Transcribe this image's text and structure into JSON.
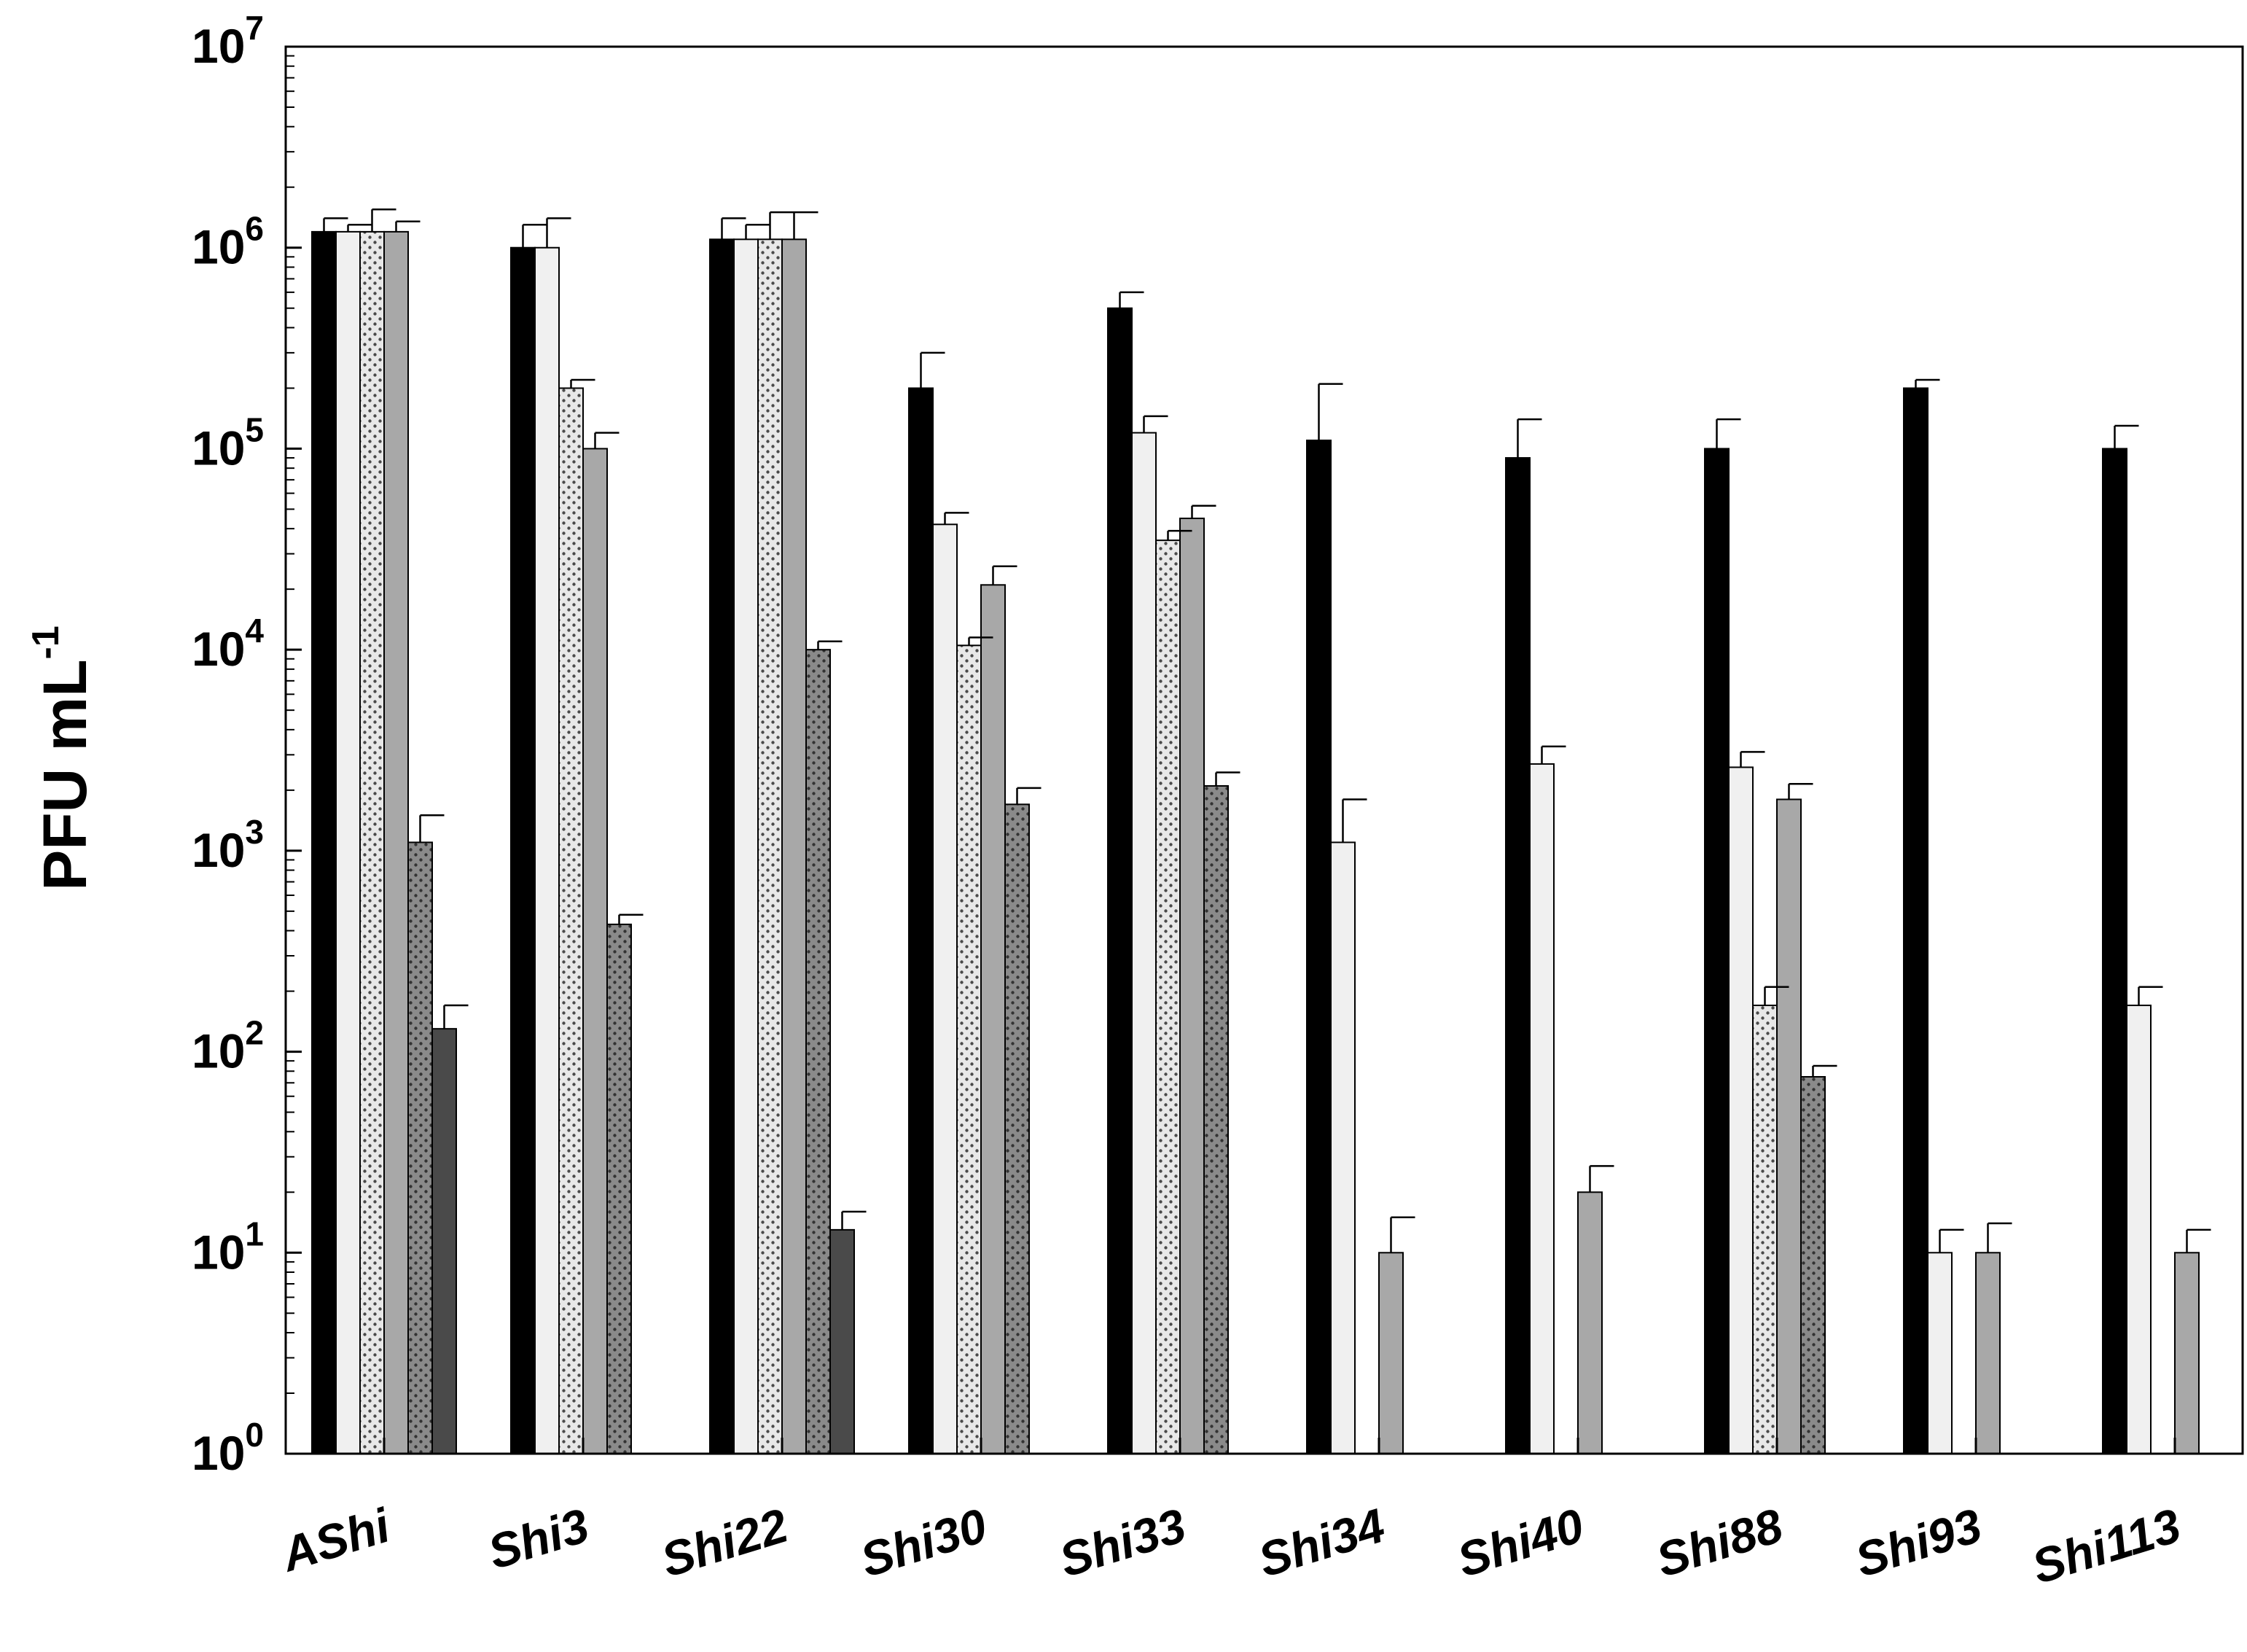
{
  "chart_data": {
    "type": "bar",
    "yscale": "log",
    "ylim": [
      1,
      10000000
    ],
    "ylabel": "PFU mL",
    "ylabel_exponent": "-1",
    "xlabel": "",
    "title": "",
    "legend": "none",
    "y_ticks": [
      {
        "base": "10",
        "exp": "0"
      },
      {
        "base": "10",
        "exp": "1"
      },
      {
        "base": "10",
        "exp": "2"
      },
      {
        "base": "10",
        "exp": "3"
      },
      {
        "base": "10",
        "exp": "4"
      },
      {
        "base": "10",
        "exp": "5"
      },
      {
        "base": "10",
        "exp": "6"
      },
      {
        "base": "10",
        "exp": "7"
      }
    ],
    "categories": [
      "AShi",
      "Shi3",
      "Shi22",
      "Shi30",
      "Shi33",
      "Shi34",
      "Shi40",
      "Shi88",
      "Shi93",
      "Shi113"
    ],
    "series": [
      {
        "fill": "#000000",
        "pattern": "solid",
        "values": [
          1200000,
          1000000,
          1100000,
          200000,
          500000,
          110000,
          90000,
          100000,
          200000,
          100000
        ],
        "errors": [
          1400000,
          1300000,
          1400000,
          300000,
          600000,
          210000,
          140000,
          140000,
          220000,
          130000
        ]
      },
      {
        "fill": "#f0f0f0",
        "pattern": "solid",
        "values": [
          1200000,
          1000000,
          1100000,
          42000,
          120000,
          1100,
          2700,
          2600,
          10,
          170
        ],
        "errors": [
          1300000,
          1400000,
          1300000,
          48000,
          145000,
          1800,
          3300,
          3100,
          13,
          210
        ]
      },
      {
        "fill": "#e8e8e8",
        "pattern": "dots",
        "values": [
          1200000,
          200000,
          1100000,
          10500,
          35000,
          null,
          null,
          170,
          null,
          null
        ],
        "errors": [
          1550000,
          220000,
          1500000,
          11500,
          39000,
          null,
          null,
          210,
          null,
          null
        ]
      },
      {
        "fill": "#a8a8a8",
        "pattern": "solid",
        "values": [
          1200000,
          100000,
          1100000,
          21000,
          45000,
          10,
          20,
          1800,
          10,
          10
        ],
        "errors": [
          1350000,
          120000,
          1500000,
          26000,
          52000,
          15,
          27,
          2150,
          14,
          13
        ]
      },
      {
        "fill": "#8a8a8a",
        "pattern": "dots",
        "values": [
          1100,
          430,
          10000,
          1700,
          2100,
          null,
          null,
          75,
          null,
          null
        ],
        "errors": [
          1500,
          480,
          11000,
          2050,
          2450,
          null,
          null,
          85,
          null,
          null
        ]
      },
      {
        "fill": "#4a4a4a",
        "pattern": "solid",
        "values": [
          130,
          null,
          13,
          null,
          null,
          null,
          null,
          null,
          null,
          null
        ],
        "errors": [
          170,
          null,
          16,
          null,
          null,
          null,
          null,
          null,
          null,
          null
        ]
      }
    ]
  }
}
